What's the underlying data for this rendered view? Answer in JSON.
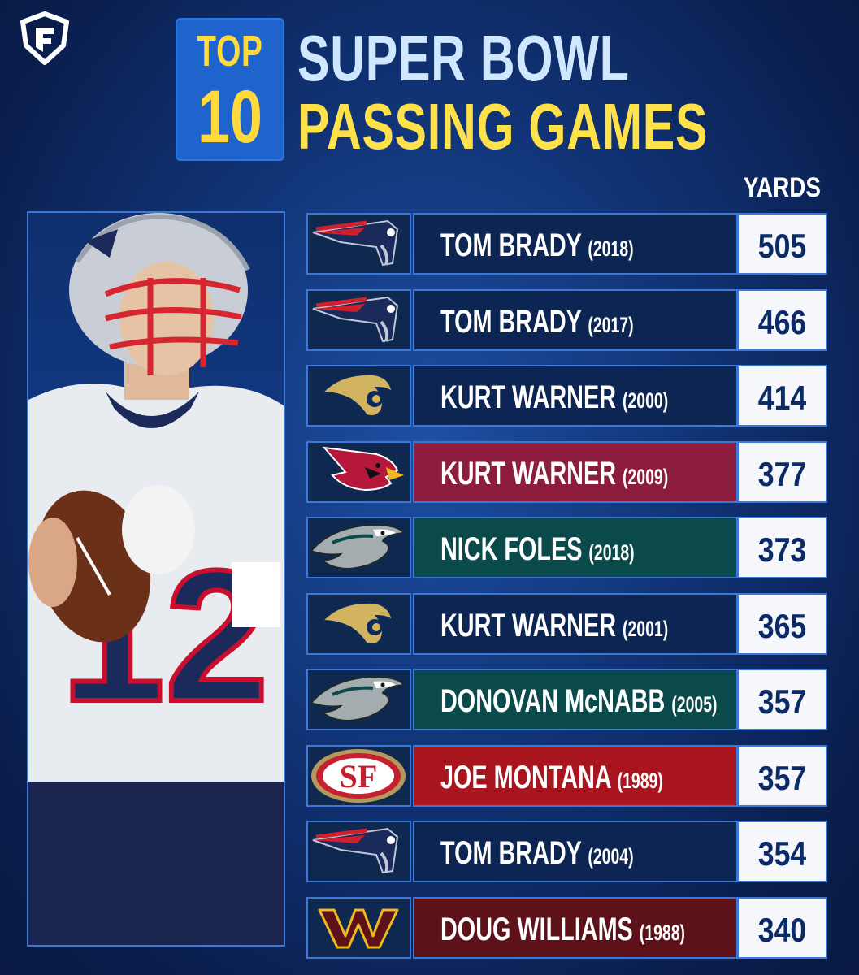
{
  "header": {
    "top_label": "TOP",
    "ten_label": "10",
    "title_line1": "SUPER BOWL",
    "title_line2": "PASSING GAMES",
    "yards_label": "YARDS"
  },
  "rows": [
    {
      "team": "Patriots",
      "player": "TOM BRADY",
      "year": "(2018)",
      "yards": "505",
      "color": "#0c2552"
    },
    {
      "team": "Patriots",
      "player": "TOM BRADY",
      "year": "(2017)",
      "yards": "466",
      "color": "#0c2552"
    },
    {
      "team": "Rams",
      "player": "KURT WARNER",
      "year": "(2000)",
      "yards": "414",
      "color": "#0c2552"
    },
    {
      "team": "Cardinals",
      "player": "KURT WARNER",
      "year": "(2009)",
      "yards": "377",
      "color": "#8c1d3d"
    },
    {
      "team": "Eagles",
      "player": "NICK FOLES",
      "year": "(2018)",
      "yards": "373",
      "color": "#0b4a4a"
    },
    {
      "team": "Rams",
      "player": "KURT WARNER",
      "year": "(2001)",
      "yards": "365",
      "color": "#0c2552"
    },
    {
      "team": "Eagles",
      "player": "DONOVAN McNABB",
      "year": "(2005)",
      "yards": "357",
      "color": "#0b4a4a"
    },
    {
      "team": "49ers",
      "player": "JOE MONTANA",
      "year": "(1989)",
      "yards": "357",
      "color": "#a8151f"
    },
    {
      "team": "Patriots",
      "player": "TOM BRADY",
      "year": "(2004)",
      "yards": "354",
      "color": "#0c2552"
    },
    {
      "team": "Commanders",
      "player": "DOUG WILLIAMS",
      "year": "(1988)",
      "yards": "340",
      "color": "#5c1218"
    }
  ]
}
